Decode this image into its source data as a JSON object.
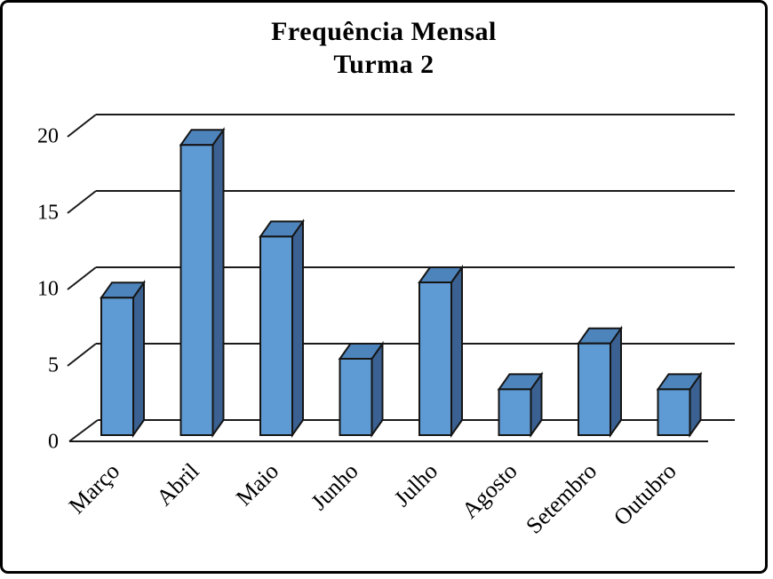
{
  "frame": {
    "background": "#ffffff",
    "border_color": "#000000"
  },
  "title": {
    "line1": "Frequência Mensal",
    "line2": "Turma 2"
  },
  "chart_data": {
    "type": "bar",
    "title": "Frequência Mensal Turma 2",
    "categories": [
      "Março",
      "Abril",
      "Maio",
      "Junho",
      "Julho",
      "Agosto",
      "Setembro",
      "Outubro"
    ],
    "values": [
      9,
      19,
      13,
      5,
      10,
      3,
      6,
      3
    ],
    "xlabel": "",
    "ylabel": "",
    "ylim": [
      0,
      20
    ],
    "yticks": [
      0,
      5,
      10,
      15,
      20
    ],
    "grid": true,
    "style_3d": true,
    "legend": "none",
    "colors": {
      "bar_front": "#5E9AD3",
      "bar_top": "#4E84BC",
      "bar_side": "#3A6191",
      "outline": "#151515",
      "gridline": "#1a1a1a",
      "text": "#000000"
    }
  }
}
